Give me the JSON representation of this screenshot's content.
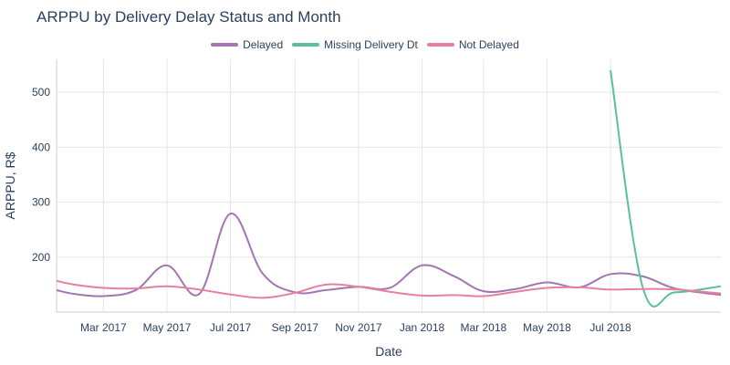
{
  "chart_data": {
    "type": "line",
    "title": "ARPPU by Delivery Delay Status and Month",
    "xlabel": "Date",
    "ylabel": "ARPPU, R$",
    "x_axis_type": "date",
    "xlim": [
      "2017-01-15",
      "2018-10-15"
    ],
    "ylim": [
      100,
      560
    ],
    "x_ticks": [
      {
        "value": "2017-03-01",
        "label": "Mar 2017"
      },
      {
        "value": "2017-05-01",
        "label": "May 2017"
      },
      {
        "value": "2017-07-01",
        "label": "Jul 2017"
      },
      {
        "value": "2017-09-01",
        "label": "Sep 2017"
      },
      {
        "value": "2017-11-01",
        "label": "Nov 2017"
      },
      {
        "value": "2018-01-01",
        "label": "Jan 2018"
      },
      {
        "value": "2018-03-01",
        "label": "Mar 2018"
      },
      {
        "value": "2018-05-01",
        "label": "May 2018"
      },
      {
        "value": "2018-07-01",
        "label": "Jul 2018"
      }
    ],
    "y_ticks": [
      200,
      300,
      400,
      500
    ],
    "grid": true,
    "legend_position": "top-center",
    "series": [
      {
        "name": "Delayed",
        "color": "#a575b2",
        "points": [
          {
            "x": "2017-01-15",
            "y": 140
          },
          {
            "x": "2017-02-01",
            "y": 133
          },
          {
            "x": "2017-03-01",
            "y": 129
          },
          {
            "x": "2017-04-01",
            "y": 140
          },
          {
            "x": "2017-05-01",
            "y": 185
          },
          {
            "x": "2017-06-01",
            "y": 133
          },
          {
            "x": "2017-07-01",
            "y": 279
          },
          {
            "x": "2017-08-01",
            "y": 170
          },
          {
            "x": "2017-09-01",
            "y": 136
          },
          {
            "x": "2017-10-01",
            "y": 140
          },
          {
            "x": "2017-11-01",
            "y": 146
          },
          {
            "x": "2017-12-01",
            "y": 144
          },
          {
            "x": "2018-01-01",
            "y": 185
          },
          {
            "x": "2018-02-01",
            "y": 165
          },
          {
            "x": "2018-03-01",
            "y": 138
          },
          {
            "x": "2018-04-01",
            "y": 142
          },
          {
            "x": "2018-05-01",
            "y": 154
          },
          {
            "x": "2018-06-01",
            "y": 145
          },
          {
            "x": "2018-07-01",
            "y": 169
          },
          {
            "x": "2018-08-01",
            "y": 165
          },
          {
            "x": "2018-09-01",
            "y": 143
          },
          {
            "x": "2018-10-15",
            "y": 131
          }
        ]
      },
      {
        "name": "Missing Delivery Dt",
        "color": "#5bbf9e",
        "points": [
          {
            "x": "2018-07-01",
            "y": 540
          },
          {
            "x": "2018-08-01",
            "y": 145
          },
          {
            "x": "2018-09-01",
            "y": 136
          },
          {
            "x": "2018-10-15",
            "y": 147
          }
        ]
      },
      {
        "name": "Not Delayed",
        "color": "#e67fa2",
        "points": [
          {
            "x": "2017-01-15",
            "y": 157
          },
          {
            "x": "2017-02-01",
            "y": 150
          },
          {
            "x": "2017-03-01",
            "y": 144
          },
          {
            "x": "2017-04-01",
            "y": 143
          },
          {
            "x": "2017-05-01",
            "y": 147
          },
          {
            "x": "2017-06-01",
            "y": 141
          },
          {
            "x": "2017-07-01",
            "y": 132
          },
          {
            "x": "2017-08-01",
            "y": 126
          },
          {
            "x": "2017-09-01",
            "y": 135
          },
          {
            "x": "2017-10-01",
            "y": 150
          },
          {
            "x": "2017-11-01",
            "y": 146
          },
          {
            "x": "2017-12-01",
            "y": 137
          },
          {
            "x": "2018-01-01",
            "y": 130
          },
          {
            "x": "2018-02-01",
            "y": 131
          },
          {
            "x": "2018-03-01",
            "y": 129
          },
          {
            "x": "2018-04-01",
            "y": 137
          },
          {
            "x": "2018-05-01",
            "y": 144
          },
          {
            "x": "2018-06-01",
            "y": 145
          },
          {
            "x": "2018-07-01",
            "y": 141
          },
          {
            "x": "2018-08-01",
            "y": 142
          },
          {
            "x": "2018-09-01",
            "y": 141
          },
          {
            "x": "2018-10-15",
            "y": 134
          }
        ]
      }
    ]
  }
}
